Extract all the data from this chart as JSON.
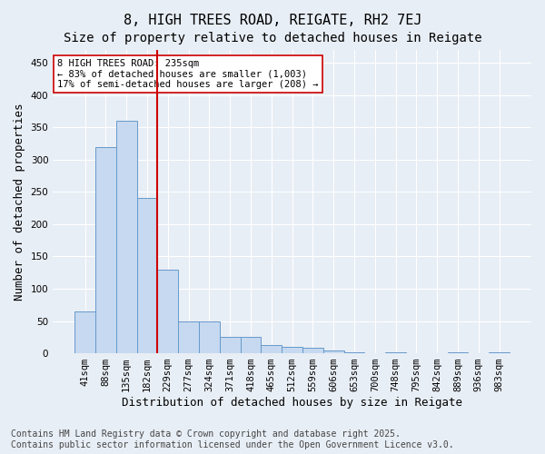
{
  "title": "8, HIGH TREES ROAD, REIGATE, RH2 7EJ",
  "subtitle": "Size of property relative to detached houses in Reigate",
  "xlabel": "Distribution of detached houses by size in Reigate",
  "ylabel": "Number of detached properties",
  "categories": [
    "41sqm",
    "88sqm",
    "135sqm",
    "182sqm",
    "229sqm",
    "277sqm",
    "324sqm",
    "371sqm",
    "418sqm",
    "465sqm",
    "512sqm",
    "559sqm",
    "606sqm",
    "653sqm",
    "700sqm",
    "748sqm",
    "795sqm",
    "842sqm",
    "889sqm",
    "936sqm",
    "983sqm"
  ],
  "values": [
    65,
    320,
    360,
    240,
    130,
    50,
    50,
    25,
    25,
    13,
    10,
    8,
    5,
    1,
    0,
    1,
    0,
    0,
    1,
    0,
    1
  ],
  "bar_color": "#c6d9f0",
  "bar_edge_color": "#6699cc",
  "vline_color": "#cc0000",
  "annotation_text": "8 HIGH TREES ROAD: 235sqm\n← 83% of detached houses are smaller (1,003)\n17% of semi-detached houses are larger (208) →",
  "annotation_box_color": "#ffffff",
  "annotation_box_edge": "#cc0000",
  "ylim": [
    0,
    470
  ],
  "yticks": [
    0,
    50,
    100,
    150,
    200,
    250,
    300,
    350,
    400,
    450
  ],
  "background_color": "#e8eef5",
  "grid_color": "#ffffff",
  "footer_line1": "Contains HM Land Registry data © Crown copyright and database right 2025.",
  "footer_line2": "Contains public sector information licensed under the Open Government Licence v3.0.",
  "title_fontsize": 11,
  "subtitle_fontsize": 10,
  "xlabel_fontsize": 9,
  "ylabel_fontsize": 9,
  "tick_fontsize": 7.5,
  "footer_fontsize": 7,
  "vline_pos": 3.5
}
